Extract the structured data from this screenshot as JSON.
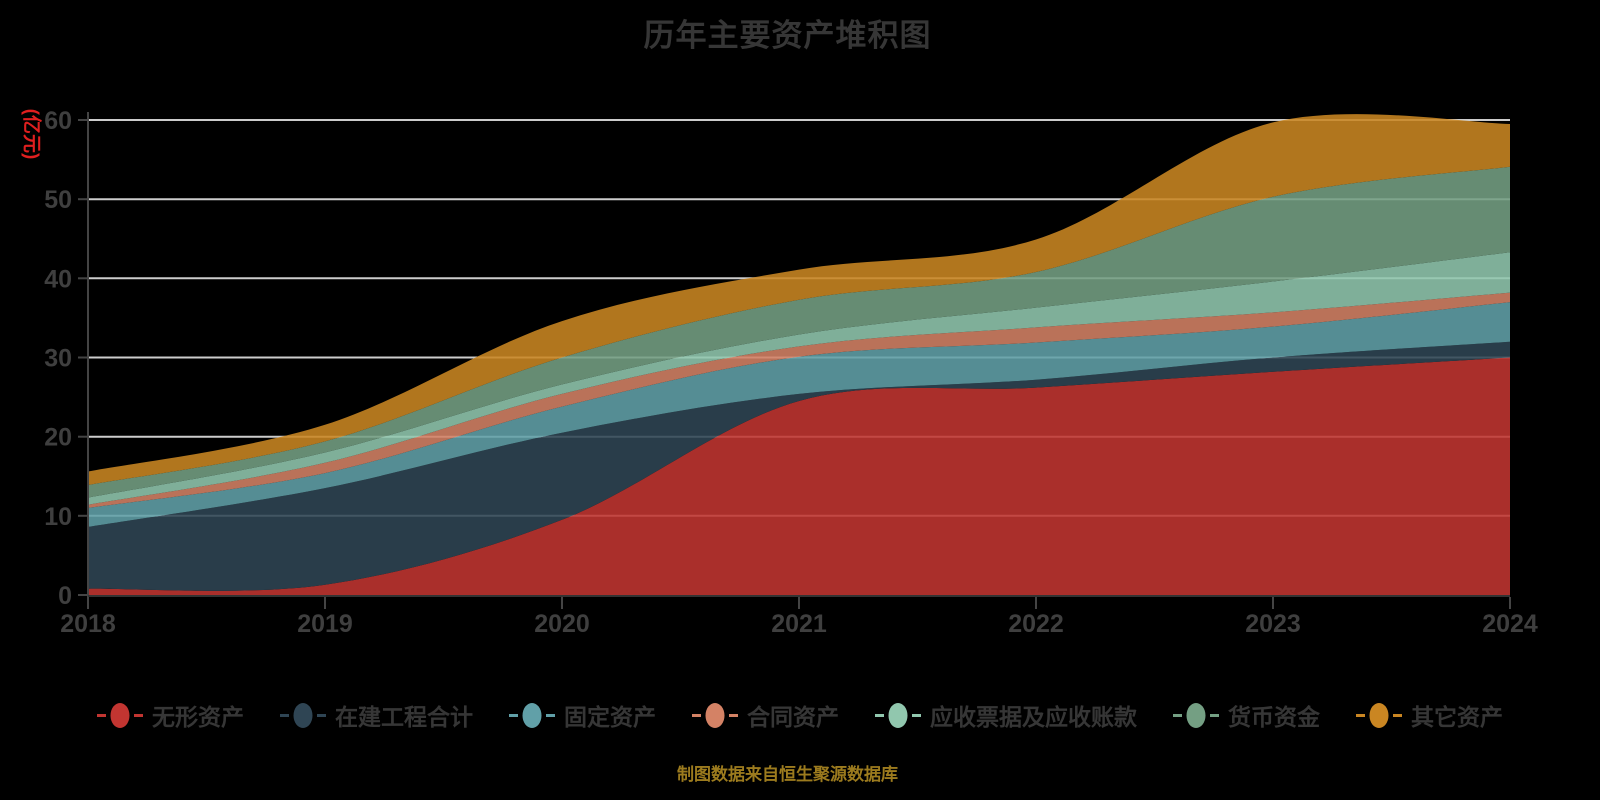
{
  "title": "历年主要资产堆积图",
  "footer": "制图数据来自恒生聚源数据库",
  "chart_data": {
    "type": "area",
    "stacked": true,
    "smooth": true,
    "title": "历年主要资产堆积图",
    "ylabel": "(亿元)",
    "ylabel_color": "#e01f1f",
    "xlabel": "",
    "categories": [
      "2018",
      "2019",
      "2020",
      "2021",
      "2022",
      "2023",
      "2024"
    ],
    "series": [
      {
        "name": "无形资产",
        "color": "#c23531",
        "values": [
          0.8,
          1.3,
          9.5,
          24.5,
          26.2,
          28.2,
          30.0
        ]
      },
      {
        "name": "在建工程合计",
        "color": "#2f4554",
        "values": [
          7.8,
          12.2,
          11.0,
          0.9,
          1.0,
          1.8,
          2.0
        ]
      },
      {
        "name": "固定资产",
        "color": "#61a0a8",
        "values": [
          2.4,
          1.9,
          3.3,
          4.7,
          4.7,
          3.9,
          5.0
        ]
      },
      {
        "name": "合同资产",
        "color": "#d48265",
        "values": [
          0.4,
          1.3,
          1.6,
          1.3,
          1.9,
          1.8,
          1.2
        ]
      },
      {
        "name": "应收票据及应收账款",
        "color": "#91c7ae",
        "values": [
          0.9,
          1.3,
          1.2,
          1.5,
          2.5,
          3.9,
          5.1
        ]
      },
      {
        "name": "货币资金",
        "color": "#749f83",
        "values": [
          1.6,
          1.4,
          3.4,
          4.4,
          4.5,
          10.7,
          10.8
        ]
      },
      {
        "name": "其它资产",
        "color": "#ca8622",
        "values": [
          1.7,
          2.1,
          4.6,
          3.8,
          4.1,
          9.4,
          5.4
        ]
      }
    ],
    "ylim": [
      0,
      60
    ],
    "y_ticks": [
      0,
      10,
      20,
      30,
      40,
      50,
      60
    ],
    "grid": true,
    "gridline_color": "#cccccc",
    "axis_color": "#444444",
    "tick_label_color": "#3f3f3f",
    "legend_position": "bottom",
    "background": "#000000"
  }
}
